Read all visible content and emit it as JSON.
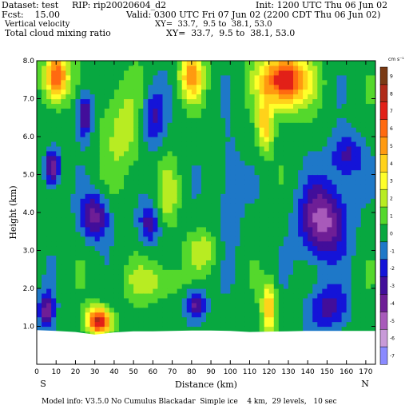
{
  "header": {
    "dataset": "Dataset: test",
    "rip": "RIP: rip20020604_d2",
    "init": "Init: 1200 UTC Thu 06 Jun 02",
    "fcst": "Fcst:    15.00",
    "valid": "Valid: 0300 UTC Fri 07 Jun 02 (2200 CDT Thu 06 Jun 02)",
    "field1": "Vertical velocity",
    "field1_xy": "XY=  33.7,  9.5 to  38.1, 53.0",
    "field2": "Total cloud mixing ratio",
    "field2_xy": "XY=  33.7,  9.5 to  38.1, 53.0"
  },
  "footer": "Model info: V3.5.0 No Cumulus Blackadar  Simple ice    4 km,  29 levels,   10 sec",
  "chart_data": {
    "type": "heatmap",
    "title": "",
    "xlabel": "Distance (km)",
    "ylabel": "Height (km)",
    "xlim": [
      0,
      175
    ],
    "ylim": [
      0,
      8
    ],
    "x_ticks": [
      "0",
      "10",
      "20",
      "30",
      "40",
      "50",
      "60",
      "70",
      "80",
      "90",
      "100",
      "110",
      "120",
      "130",
      "140",
      "150",
      "160",
      "170"
    ],
    "y_ticks": [
      "1.0",
      "2.0",
      "3.0",
      "4.0",
      "5.0",
      "6.0",
      "7.0",
      "8.0"
    ],
    "endpoint_labels": {
      "left": "S",
      "right": "N"
    },
    "colorbar_unit": "cm s⁻¹",
    "colorbar_levels": [
      "9",
      "8",
      "7",
      "6",
      "5",
      "4",
      "3",
      "2",
      "1",
      "0",
      "-1",
      "-2",
      "-3",
      "-4",
      "-5",
      "-6",
      "-7"
    ],
    "colorbar_colors": [
      "#7a3a14",
      "#b02a18",
      "#e22018",
      "#ff6a10",
      "#ff9a10",
      "#ffd21a",
      "#ffff2a",
      "#b8ec22",
      "#54d82c",
      "#08a840",
      "#1e78c8",
      "#1414d8",
      "#420e9a",
      "#6e1e96",
      "#a85aba",
      "#c89ad8",
      "#8a8aff"
    ],
    "terrain": [
      [
        0,
        0.9
      ],
      [
        10,
        0.88
      ],
      [
        20,
        0.85
      ],
      [
        30,
        0.78
      ],
      [
        40,
        0.84
      ],
      [
        50,
        0.87
      ],
      [
        60,
        0.87
      ],
      [
        70,
        0.88
      ],
      [
        80,
        0.89
      ],
      [
        90,
        0.89
      ],
      [
        100,
        0.88
      ],
      [
        110,
        0.85
      ],
      [
        120,
        0.86
      ],
      [
        130,
        0.87
      ],
      [
        140,
        0.88
      ],
      [
        150,
        0.88
      ],
      [
        160,
        0.88
      ],
      [
        175,
        0.88
      ]
    ],
    "features": [
      {
        "x": 10,
        "y": 7.6,
        "sx": 6,
        "sy": 0.6,
        "a": 7
      },
      {
        "x": 80,
        "y": 7.6,
        "sx": 6,
        "sy": 0.6,
        "a": 5
      },
      {
        "x": 128,
        "y": 7.5,
        "sx": 12,
        "sy": 0.7,
        "a": 8
      },
      {
        "x": 118,
        "y": 6.3,
        "sx": 4,
        "sy": 0.7,
        "a": 4
      },
      {
        "x": 32,
        "y": 1.15,
        "sx": 6,
        "sy": 0.35,
        "a": 8
      },
      {
        "x": 120,
        "y": 1.5,
        "sx": 3.5,
        "sy": 0.6,
        "a": 5
      },
      {
        "x": 86,
        "y": 3.0,
        "sx": 8,
        "sy": 0.5,
        "a": 2
      },
      {
        "x": 68,
        "y": 4.5,
        "sx": 5,
        "sy": 0.8,
        "a": 2
      },
      {
        "x": 45,
        "y": 6.2,
        "sx": 12,
        "sy": 1.2,
        "a": 2
      },
      {
        "x": 5,
        "y": 6.0,
        "sx": 8,
        "sy": 1.0,
        "a": 0.5
      },
      {
        "x": 60,
        "y": 2.2,
        "sx": 15,
        "sy": 0.5,
        "a": 2
      },
      {
        "x": 8,
        "y": 5.2,
        "sx": 4,
        "sy": 0.5,
        "a": -5
      },
      {
        "x": 25,
        "y": 6.6,
        "sx": 4,
        "sy": 0.6,
        "a": -4
      },
      {
        "x": 60,
        "y": 6.5,
        "sx": 6,
        "sy": 0.8,
        "a": -3
      },
      {
        "x": 30,
        "y": 3.9,
        "sx": 7,
        "sy": 0.6,
        "a": -4
      },
      {
        "x": 58,
        "y": 3.7,
        "sx": 5,
        "sy": 0.5,
        "a": -3
      },
      {
        "x": 82,
        "y": 1.6,
        "sx": 5,
        "sy": 0.4,
        "a": -4
      },
      {
        "x": 5,
        "y": 1.4,
        "sx": 4,
        "sy": 0.5,
        "a": -4
      },
      {
        "x": 148,
        "y": 3.8,
        "sx": 12,
        "sy": 1.0,
        "a": -5
      },
      {
        "x": 160,
        "y": 5.5,
        "sx": 8,
        "sy": 0.6,
        "a": -3
      },
      {
        "x": 150,
        "y": 1.5,
        "sx": 10,
        "sy": 0.6,
        "a": -3
      },
      {
        "x": 100,
        "y": 4.5,
        "sx": 6,
        "sy": 1.5,
        "a": -1.5
      }
    ]
  }
}
